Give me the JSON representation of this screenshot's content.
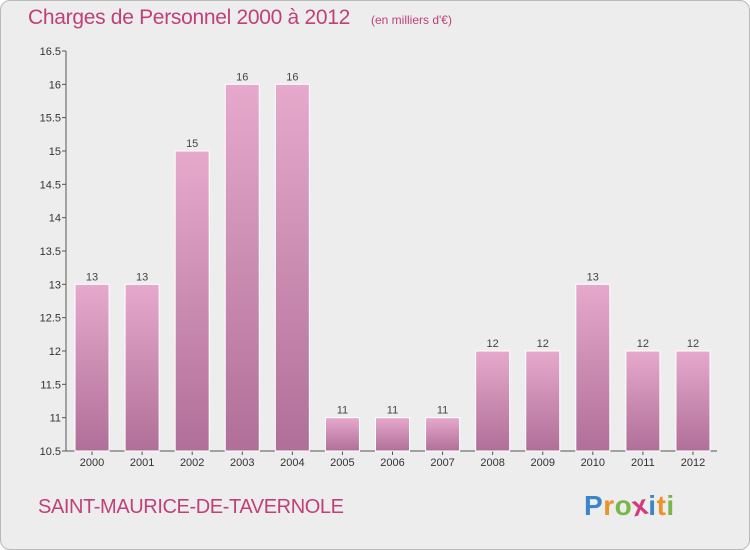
{
  "title": "Charges de Personnel 2000 à 2012",
  "unit_note": "(en milliers d'€)",
  "place": "SAINT-MAURICE-DE-TAVERNOLE",
  "logo": {
    "text": "Proxiti",
    "letters": [
      "P",
      "r",
      "o",
      "x",
      "i",
      "t",
      "i"
    ],
    "colors": [
      "#3a86c8",
      "#e8932b",
      "#7ab648",
      "#d23c7a",
      "#3a86c8",
      "#e8932b",
      "#7ab648"
    ]
  },
  "colors": {
    "bar_top": "#e6a9cc",
    "bar_bottom": "#b06f98",
    "accent": "#c0407a",
    "background": "#ededed"
  },
  "chart_data": {
    "type": "bar",
    "categories": [
      "2000",
      "2001",
      "2002",
      "2003",
      "2004",
      "2005",
      "2006",
      "2007",
      "2008",
      "2009",
      "2010",
      "2011",
      "2012"
    ],
    "values": [
      13,
      13,
      15,
      16,
      16,
      11,
      11,
      11,
      12,
      12,
      13,
      12,
      12
    ],
    "data_labels": [
      "13",
      "13",
      "15",
      "16",
      "16",
      "11",
      "11",
      "11",
      "12",
      "12",
      "13",
      "12",
      "12"
    ],
    "ylim": [
      10.5,
      16.5
    ],
    "yticks": [
      "10.5",
      "11",
      "11.5",
      "12",
      "12.5",
      "13",
      "13.5",
      "14",
      "14.5",
      "15",
      "15.5",
      "16",
      "16.5"
    ],
    "grid": false,
    "title": "Charges de Personnel 2000 à 2012",
    "xlabel": "",
    "ylabel": ""
  }
}
